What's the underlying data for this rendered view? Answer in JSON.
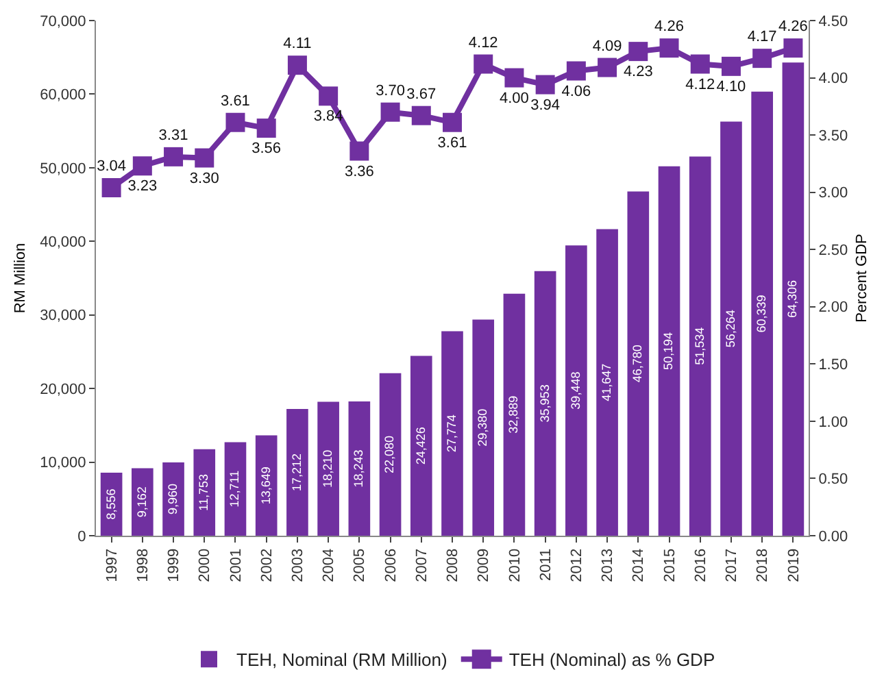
{
  "chart_data": {
    "type": "bar",
    "ylabel": "RM Million",
    "y2label": "Percent GDP",
    "categories": [
      "1997",
      "1998",
      "1999",
      "2000",
      "2001",
      "2002",
      "2003",
      "2004",
      "2005",
      "2006",
      "2007",
      "2008",
      "2009",
      "2010",
      "2011",
      "2012",
      "2013",
      "2014",
      "2015",
      "2016",
      "2017",
      "2018",
      "2019"
    ],
    "series": [
      {
        "name": "TEH, Nominal (RM Million)",
        "color": "#7030a0",
        "values": [
          8556,
          9162,
          9960,
          11753,
          12711,
          13649,
          17212,
          18210,
          18243,
          22080,
          24426,
          27774,
          29380,
          32889,
          35953,
          39448,
          41647,
          46780,
          50194,
          51534,
          56264,
          60339,
          64306
        ],
        "value_labels": [
          "8,556",
          "9,162",
          "9,960",
          "11,753",
          "12,711",
          "13,649",
          "17,212",
          "18,210",
          "18,243",
          "22,080",
          "24,426",
          "27,774",
          "29,380",
          "32,889",
          "35,953",
          "39,448",
          "41,647",
          "46,780",
          "50,194",
          "51,534",
          "56,264",
          "60,339",
          "64,306"
        ]
      },
      {
        "name": "TEH (Nominal) as % GDP",
        "type": "line",
        "axis": "y2",
        "color": "#7030a0",
        "marker": "square",
        "values": [
          3.04,
          3.23,
          3.31,
          3.3,
          3.61,
          3.56,
          4.11,
          3.84,
          3.36,
          3.7,
          3.67,
          3.61,
          4.12,
          4.0,
          3.94,
          4.06,
          4.09,
          4.23,
          4.26,
          4.12,
          4.1,
          4.17,
          4.26
        ],
        "value_labels": [
          "3.04",
          "3.23",
          "3.31",
          "3.30",
          "3.61",
          "3.56",
          "4.11",
          "3.84",
          "3.36",
          "3.70",
          "3.67",
          "3.61",
          "4.12",
          "4.00",
          "3.94",
          "4.06",
          "4.09",
          "4.23",
          "4.26",
          "4.12",
          "4.10",
          "4.17",
          "4.26"
        ]
      }
    ],
    "ylim": [
      0,
      70000
    ],
    "yticks": [
      {
        "value": 0,
        "label": "0"
      },
      {
        "value": 10000,
        "label": "10,000"
      },
      {
        "value": 20000,
        "label": "20,000"
      },
      {
        "value": 30000,
        "label": "30,000"
      },
      {
        "value": 40000,
        "label": "40,000"
      },
      {
        "value": 50000,
        "label": "50,000"
      },
      {
        "value": 60000,
        "label": "60,000"
      },
      {
        "value": 70000,
        "label": "70,000"
      }
    ],
    "y2lim": [
      0,
      4.5
    ],
    "y2ticks": [
      {
        "value": 0,
        "label": "0.00"
      },
      {
        "value": 0.5,
        "label": "0.50"
      },
      {
        "value": 1,
        "label": "1.00"
      },
      {
        "value": 1.5,
        "label": "1.50"
      },
      {
        "value": 2,
        "label": "2.00"
      },
      {
        "value": 2.5,
        "label": "2.50"
      },
      {
        "value": 3,
        "label": "3.00"
      },
      {
        "value": 3.5,
        "label": "3.50"
      },
      {
        "value": 4,
        "label": "4.00"
      },
      {
        "value": 4.5,
        "label": "4.50"
      }
    ],
    "grid": false,
    "legend": "bottom"
  }
}
